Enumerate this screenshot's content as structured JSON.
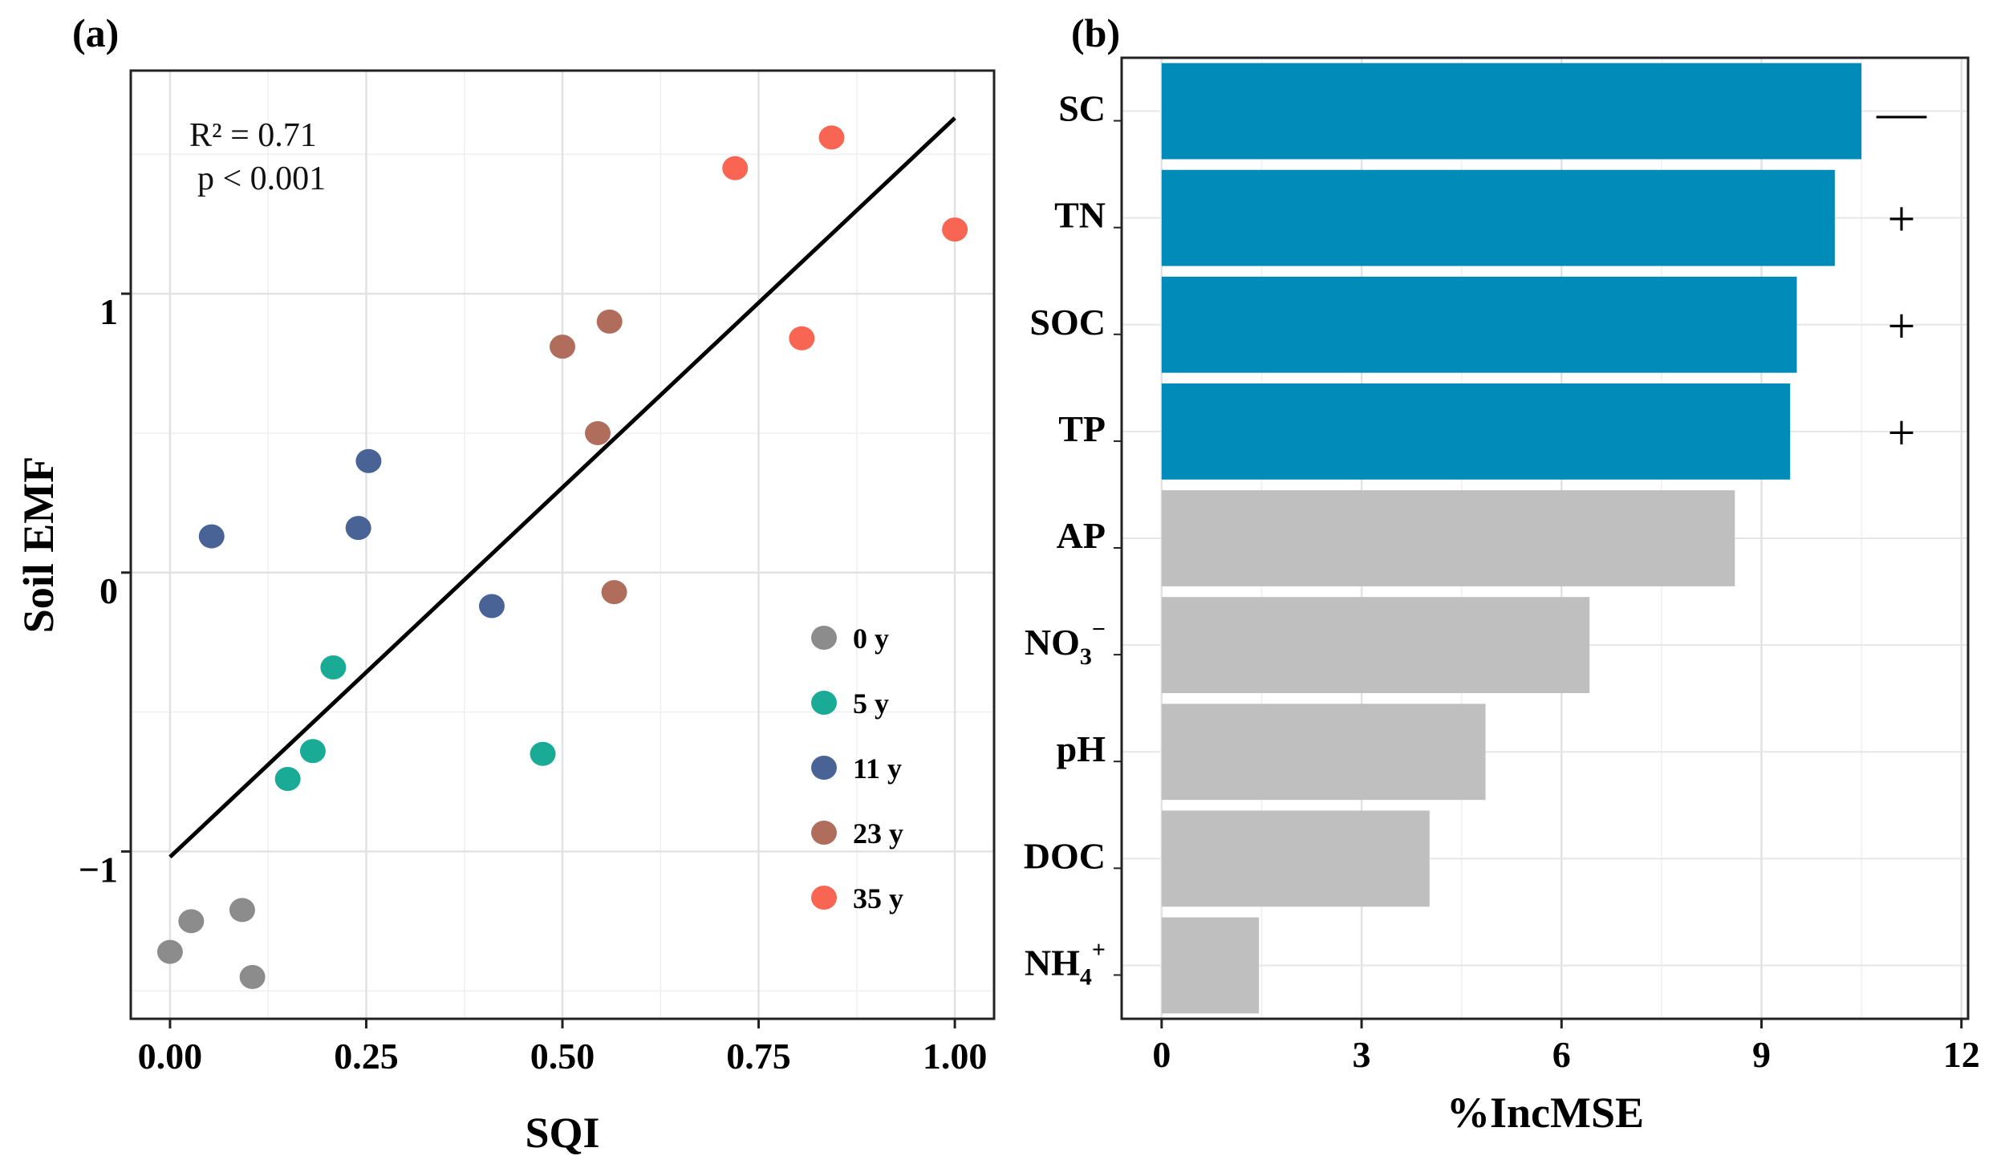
{
  "chart_data": [
    {
      "panel": "(a)",
      "type": "scatter",
      "xlabel": "SQI",
      "ylabel": "Soil EMF",
      "xlim": [
        -0.05,
        1.05
      ],
      "ylim": [
        -1.6,
        1.8
      ],
      "x_ticks": [
        0.0,
        0.25,
        0.5,
        0.75,
        1.0
      ],
      "x_tick_labels": [
        "0.00",
        "0.25",
        "0.50",
        "0.75",
        "1.00"
      ],
      "y_ticks": [
        -1,
        0,
        1
      ],
      "y_tick_labels": [
        "−1",
        "0",
        "1"
      ],
      "y_minor_gridlines": [
        -1.5,
        -0.5,
        0.5,
        1.5
      ],
      "x_minor_gridlines": [
        0.125,
        0.375,
        0.625,
        0.875
      ],
      "grid": true,
      "annotation": {
        "r2": "R² = 0.71",
        "p": "p < 0.001"
      },
      "fit_line": {
        "x": [
          0.0,
          1.0
        ],
        "y": [
          -1.02,
          1.63
        ],
        "color": "#000000"
      },
      "series": [
        {
          "name": "0 y",
          "color": "#8c8c8c",
          "x": [
            0.0,
            0.027,
            0.092,
            0.105
          ],
          "y": [
            -1.36,
            -1.25,
            -1.21,
            -1.45
          ]
        },
        {
          "name": "5 y",
          "color": "#1aab96",
          "x": [
            0.15,
            0.182,
            0.208,
            0.475
          ],
          "y": [
            -0.74,
            -0.64,
            -0.34,
            -0.65
          ]
        },
        {
          "name": "11 y",
          "color": "#4a6396",
          "x": [
            0.053,
            0.24,
            0.253,
            0.41
          ],
          "y": [
            0.13,
            0.16,
            0.4,
            -0.12
          ]
        },
        {
          "name": "23 y",
          "color": "#b06d5c",
          "x": [
            0.5,
            0.545,
            0.56,
            0.566
          ],
          "y": [
            0.81,
            0.5,
            0.9,
            -0.07
          ]
        },
        {
          "name": "35 y",
          "color": "#f86653",
          "x": [
            0.72,
            0.805,
            0.843,
            1.0
          ],
          "y": [
            1.45,
            0.84,
            1.56,
            1.23
          ]
        }
      ],
      "legend_position": "bottom-right"
    },
    {
      "panel": "(b)",
      "type": "bar",
      "orientation": "horizontal",
      "xlabel": "%IncMSE",
      "ylabel": "",
      "xlim": [
        -0.6,
        12.1
      ],
      "x_ticks": [
        0,
        3,
        6,
        9,
        12
      ],
      "x_tick_labels": [
        "0",
        "3",
        "6",
        "9",
        "12"
      ],
      "x_minor_gridlines": [
        1.5,
        4.5,
        7.5,
        10.5
      ],
      "grid": true,
      "categories": [
        {
          "main": "SC",
          "sub": "",
          "sup": ""
        },
        {
          "main": "TN",
          "sub": "",
          "sup": ""
        },
        {
          "main": "SOC",
          "sub": "",
          "sup": ""
        },
        {
          "main": "TP",
          "sub": "",
          "sup": ""
        },
        {
          "main": "AP",
          "sub": "",
          "sup": ""
        },
        {
          "main": "NO",
          "sub": "3",
          "sup": "−"
        },
        {
          "main": "pH",
          "sub": "",
          "sup": ""
        },
        {
          "main": "DOC",
          "sub": "",
          "sup": ""
        },
        {
          "main": "NH",
          "sub": "4",
          "sup": "+"
        }
      ],
      "values": [
        10.5,
        10.1,
        9.53,
        9.43,
        8.6,
        6.42,
        4.86,
        4.02,
        1.46
      ],
      "significant": [
        true,
        true,
        true,
        true,
        false,
        false,
        false,
        false,
        false
      ],
      "signs": [
        "—",
        "+",
        "+",
        "+",
        "",
        "",
        "",
        "",
        ""
      ],
      "colors": {
        "significant": "#008bb9",
        "non_significant": "#bfbfbf"
      }
    }
  ]
}
